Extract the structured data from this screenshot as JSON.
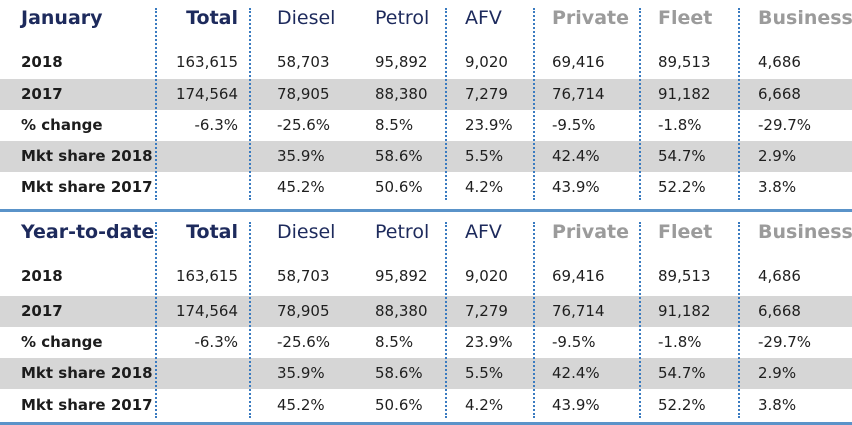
{
  "tables": [
    {
      "title": "January",
      "columns": [
        "Total",
        "Diesel",
        "Petrol",
        "AFV",
        "Private",
        "Fleet",
        "Business"
      ],
      "rows": [
        {
          "label": "2018",
          "values": [
            "163,615",
            "58,703",
            "95,892",
            "9,020",
            "69,416",
            "89,513",
            "4,686"
          ]
        },
        {
          "label": "2017",
          "values": [
            "174,564",
            "78,905",
            "88,380",
            "7,279",
            "76,714",
            "91,182",
            "6,668"
          ]
        },
        {
          "label": "% change",
          "values": [
            "-6.3%",
            "-25.6%",
            "8.5%",
            "23.9%",
            "-9.5%",
            "-1.8%",
            "-29.7%"
          ]
        },
        {
          "label": "Mkt share 2018",
          "values": [
            "",
            "35.9%",
            "58.6%",
            "5.5%",
            "42.4%",
            "54.7%",
            "2.9%"
          ]
        },
        {
          "label": "Mkt share 2017",
          "values": [
            "",
            "45.2%",
            "50.6%",
            "4.2%",
            "43.9%",
            "52.2%",
            "3.8%"
          ]
        }
      ]
    },
    {
      "title": "Year-to-date",
      "columns": [
        "Total",
        "Diesel",
        "Petrol",
        "AFV",
        "Private",
        "Fleet",
        "Business"
      ],
      "rows": [
        {
          "label": "2018",
          "values": [
            "163,615",
            "58,703",
            "95,892",
            "9,020",
            "69,416",
            "89,513",
            "4,686"
          ]
        },
        {
          "label": "2017",
          "values": [
            "174,564",
            "78,905",
            "88,380",
            "7,279",
            "76,714",
            "91,182",
            "6,668"
          ]
        },
        {
          "label": "% change",
          "values": [
            "-6.3%",
            "-25.6%",
            "8.5%",
            "23.9%",
            "-9.5%",
            "-1.8%",
            "-29.7%"
          ]
        },
        {
          "label": "Mkt share 2018",
          "values": [
            "",
            "35.9%",
            "58.6%",
            "5.5%",
            "42.4%",
            "54.7%",
            "2.9%"
          ]
        },
        {
          "label": "Mkt share 2017",
          "values": [
            "",
            "45.2%",
            "50.6%",
            "4.2%",
            "43.9%",
            "52.2%",
            "3.8%"
          ]
        }
      ]
    }
  ],
  "colors": {
    "header_dark": "#1d2a5c",
    "header_grey": "#9b9b9b",
    "row_shade": "#d6d6d6",
    "rule_blue": "#5a93c9",
    "divider_blue": "#3a7bc0"
  }
}
